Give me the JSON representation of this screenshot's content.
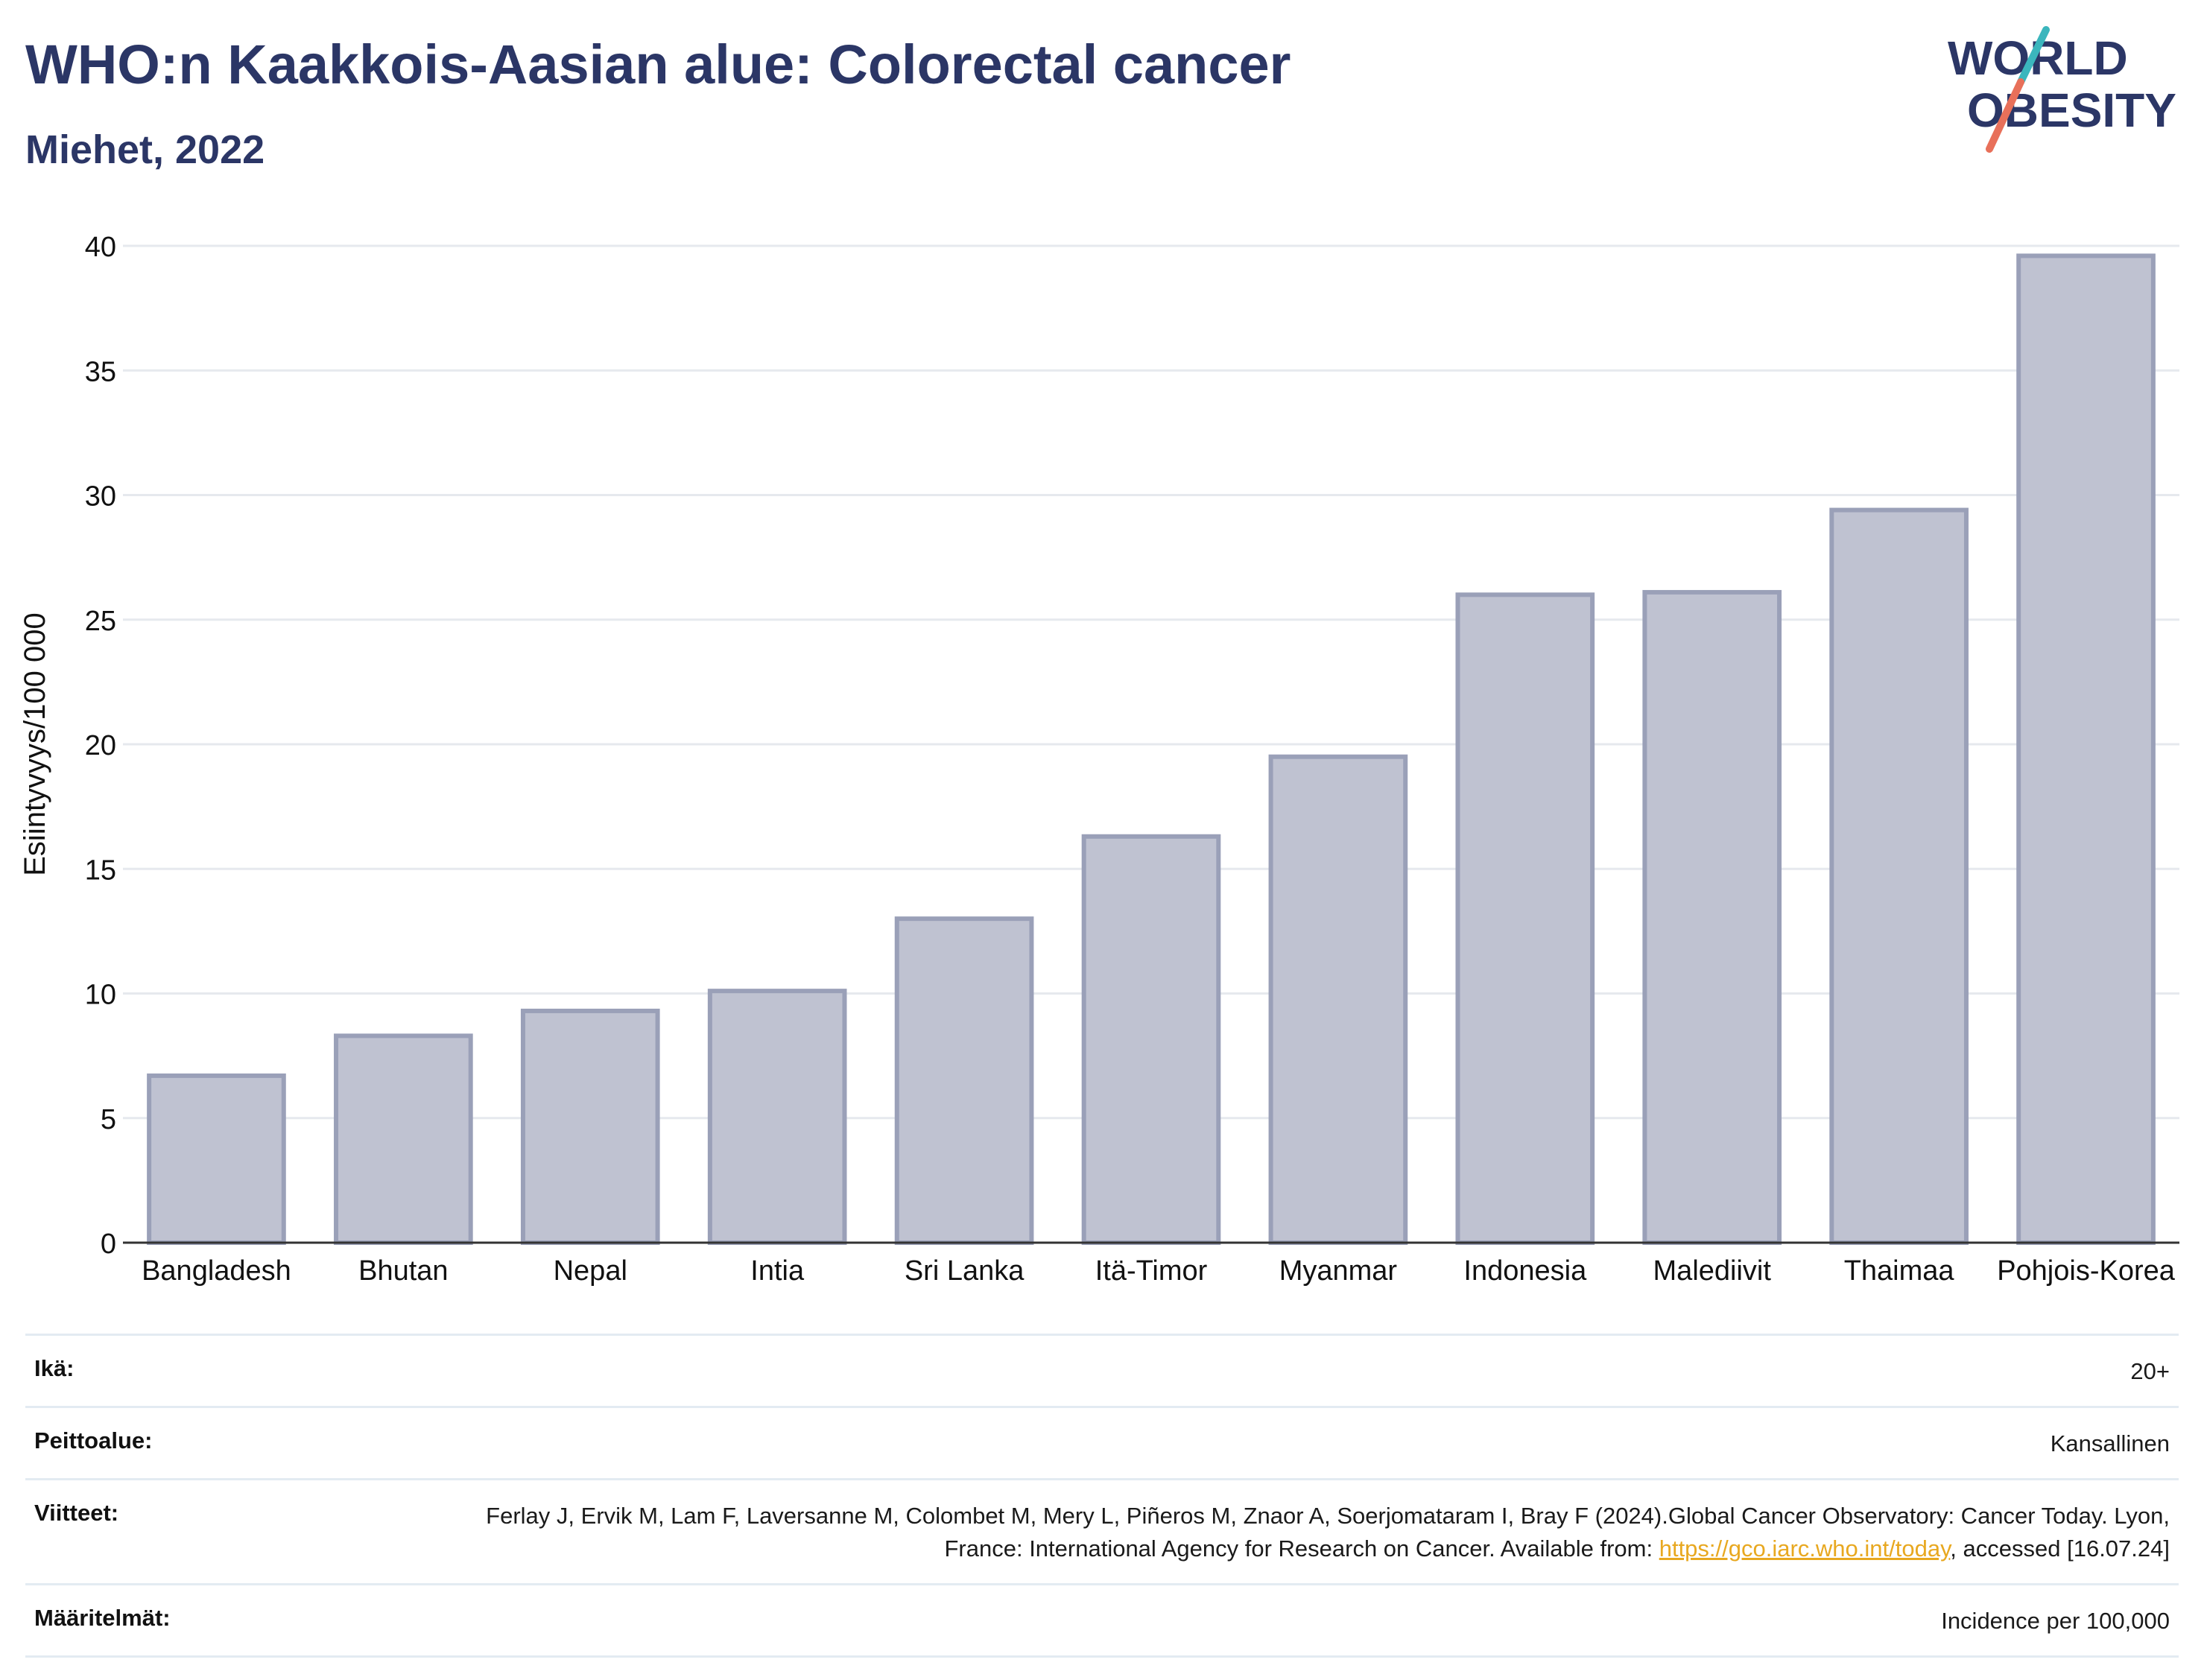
{
  "header": {
    "title": "WHO:n Kaakkois-Aasian alue: Colorectal cancer",
    "subtitle": "Miehet, 2022"
  },
  "logo": {
    "line1": "WORLD",
    "line2": "OBESITY",
    "accent_teal": "#3bb6bd",
    "accent_coral": "#e8705a",
    "text_color": "#2b3666"
  },
  "chart_data": {
    "type": "bar",
    "categories": [
      "Bangladesh",
      "Bhutan",
      "Nepal",
      "Intia",
      "Sri Lanka",
      "Itä-Timor",
      "Myanmar",
      "Indonesia",
      "Malediivit",
      "Thaimaa",
      "Pohjois-Korea"
    ],
    "values": [
      6.7,
      8.3,
      9.3,
      10.1,
      13.0,
      16.3,
      19.5,
      26.0,
      26.1,
      29.4,
      39.6
    ],
    "title": "WHO:n Kaakkois-Aasian alue: Colorectal cancer",
    "subtitle": "Miehet, 2022",
    "xlabel": "",
    "ylabel": "Esiintyvyys/100 000",
    "ylim": [
      0,
      40
    ],
    "yticks": [
      0,
      5,
      10,
      15,
      20,
      25,
      30,
      35,
      40
    ],
    "grid": true,
    "legend": "none",
    "bar_fill": "#bfc2d1",
    "bar_stroke": "#9aa0b8"
  },
  "meta": {
    "age_label": "Ikä:",
    "age_value": "20+",
    "coverage_label": "Peittoalue:",
    "coverage_value": "Kansallinen",
    "references_label": "Viitteet:",
    "references_text": "Ferlay J, Ervik M, Lam F, Laversanne M, Colombet M, Mery L, Piñeros M, Znaor A, Soerjomataram I, Bray F (2024).Global Cancer Observatory: Cancer Today. Lyon, France: International Agency for Research on Cancer. Available from: ",
    "references_link": "https://gco.iarc.who.int/today",
    "references_suffix": ", accessed [16.07.24]",
    "definitions_label": "Määritelmät:",
    "definitions_value": "Incidence per 100,000"
  }
}
